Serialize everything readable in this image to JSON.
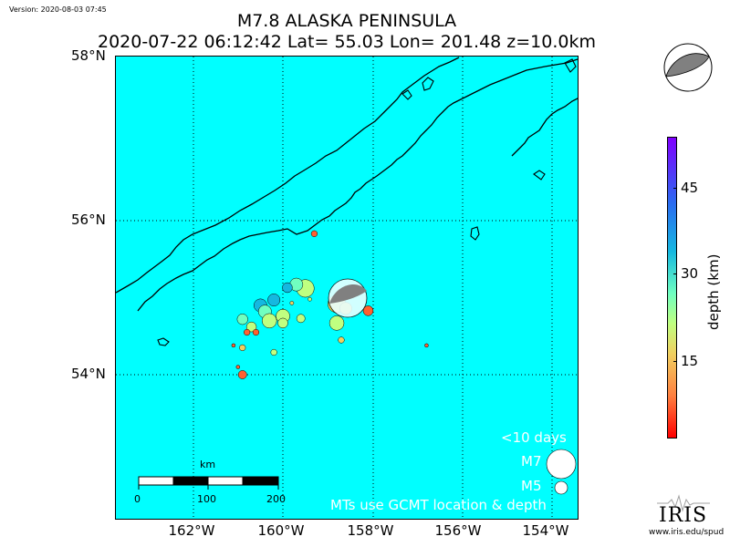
{
  "version": "Version: 2020-08-03 07:45",
  "title": {
    "line1": "M7.8 ALASKA PENINSULA",
    "line2": "2020-07-22 06:12:42 Lat= 55.03 Lon= 201.48 z=10.0km"
  },
  "axes": {
    "lat_labels": [
      "58°N",
      "56°N",
      "54°N"
    ],
    "lon_labels": [
      "162°W",
      "160°W",
      "158°W",
      "156°W",
      "154°W"
    ]
  },
  "legend": {
    "title": "<10 days",
    "m7": "M7",
    "m5": "M5",
    "note": "MTs use GCMT location & depth"
  },
  "scale_bar": {
    "unit": "km",
    "ticks": [
      "0",
      "100",
      "200"
    ]
  },
  "colorbar": {
    "label": "depth (km)",
    "ticks": [
      "45",
      "30",
      "15"
    ]
  },
  "logo": {
    "text": "IRIS",
    "url": "www.iris.edu/spud"
  },
  "colors": {
    "ocean": "#00ffff",
    "land": "#00ffff",
    "coast": "#000000",
    "mainshock": "#ff0000"
  },
  "chart_data": {
    "type": "scatter",
    "xlabel": "",
    "ylabel": "",
    "x_ticks": [
      "162°W",
      "160°W",
      "158°W",
      "156°W",
      "154°W"
    ],
    "y_ticks": [
      "58°N",
      "56°N",
      "54°N"
    ],
    "mainshock": {
      "lat": 55.03,
      "lon": 201.48,
      "depth_km": 10.0,
      "mag": 7.8
    },
    "events": [
      {
        "lon": -158.1,
        "lat": 54.83,
        "depth": 8,
        "mag": 5.0
      },
      {
        "lon": -158.8,
        "lat": 54.92,
        "depth": 19,
        "mag": 6.0
      },
      {
        "lon": -158.6,
        "lat": 54.86,
        "depth": 16,
        "mag": 5.3
      },
      {
        "lon": -159.5,
        "lat": 55.12,
        "depth": 28,
        "mag": 6.0
      },
      {
        "lon": -159.7,
        "lat": 55.17,
        "depth": 35,
        "mag": 5.4
      },
      {
        "lon": -159.9,
        "lat": 55.13,
        "depth": 38,
        "mag": 5.0
      },
      {
        "lon": -160.2,
        "lat": 54.97,
        "depth": 40,
        "mag": 5.3
      },
      {
        "lon": -160.5,
        "lat": 54.9,
        "depth": 42,
        "mag": 5.4
      },
      {
        "lon": -160.4,
        "lat": 54.82,
        "depth": 35,
        "mag": 5.4
      },
      {
        "lon": -160.0,
        "lat": 54.76,
        "depth": 27,
        "mag": 5.5
      },
      {
        "lon": -160.3,
        "lat": 54.7,
        "depth": 28,
        "mag": 5.6
      },
      {
        "lon": -160.9,
        "lat": 54.72,
        "depth": 33,
        "mag": 5.1
      },
      {
        "lon": -160.7,
        "lat": 54.62,
        "depth": 28,
        "mag": 5.0
      },
      {
        "lon": -160.0,
        "lat": 54.67,
        "depth": 26,
        "mag": 5.0
      },
      {
        "lon": -159.6,
        "lat": 54.73,
        "depth": 24,
        "mag": 4.8
      },
      {
        "lon": -158.8,
        "lat": 54.67,
        "depth": 27,
        "mag": 5.6
      },
      {
        "lon": -158.7,
        "lat": 54.45,
        "depth": 20,
        "mag": 4.5
      },
      {
        "lon": -160.8,
        "lat": 54.55,
        "depth": 10,
        "mag": 4.5
      },
      {
        "lon": -160.6,
        "lat": 54.55,
        "depth": 10,
        "mag": 4.5
      },
      {
        "lon": -161.1,
        "lat": 54.38,
        "depth": 12,
        "mag": 4.0
      },
      {
        "lon": -160.9,
        "lat": 54.35,
        "depth": 18,
        "mag": 4.5
      },
      {
        "lon": -160.2,
        "lat": 54.29,
        "depth": 28,
        "mag": 4.5
      },
      {
        "lon": -161.0,
        "lat": 54.1,
        "depth": 10,
        "mag": 4.0
      },
      {
        "lon": -160.9,
        "lat": 54.0,
        "depth": 8,
        "mag": 4.8
      },
      {
        "lon": -156.8,
        "lat": 54.38,
        "depth": 12,
        "mag": 4.0
      },
      {
        "lon": -159.3,
        "lat": 55.83,
        "depth": 8,
        "mag": 4.5
      },
      {
        "lon": -159.8,
        "lat": 54.93,
        "depth": 20,
        "mag": 4.2
      },
      {
        "lon": -159.4,
        "lat": 54.98,
        "depth": 22,
        "mag": 4.2
      }
    ]
  }
}
